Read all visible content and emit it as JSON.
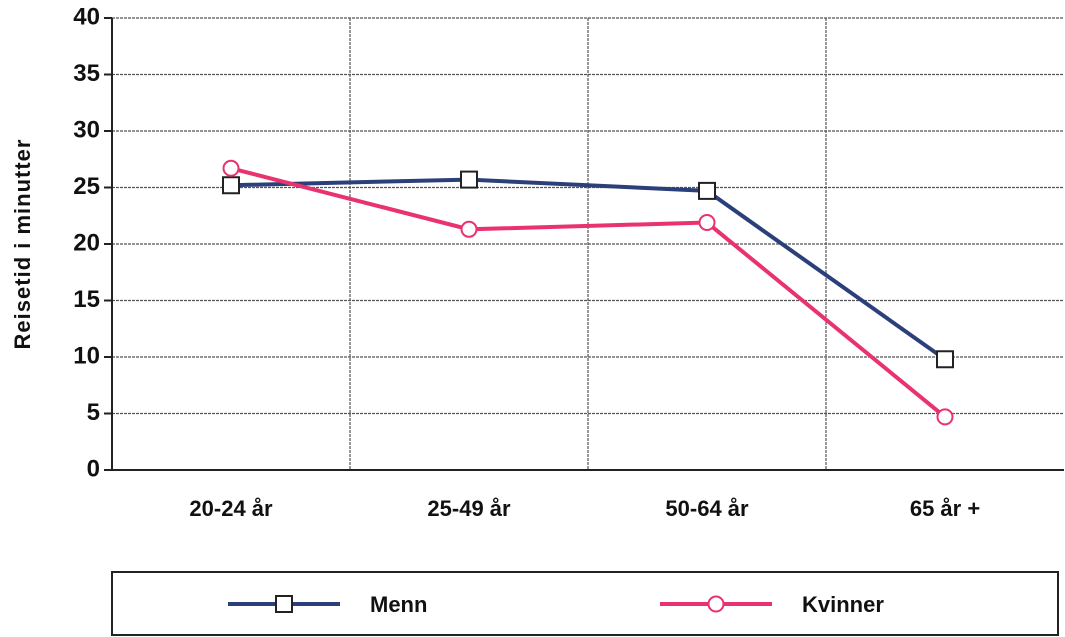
{
  "chart_data": {
    "type": "line",
    "y_label": "Reisetid i minutter",
    "categories": [
      "20-24 år",
      "25-49 år",
      "50-64 år",
      "65 år +"
    ],
    "series": [
      {
        "name": "Menn",
        "color": "#2b3f7a",
        "marker": "square",
        "values": [
          25.2,
          25.7,
          24.7,
          9.8
        ]
      },
      {
        "name": "Kvinner",
        "color": "#e8336e",
        "marker": "circle",
        "values": [
          26.7,
          21.3,
          21.9,
          4.7
        ]
      }
    ],
    "ylim": [
      0,
      40
    ],
    "yticks": [
      0,
      5,
      10,
      15,
      20,
      25,
      30,
      35,
      40
    ],
    "grid": true,
    "legend": "bottom"
  }
}
